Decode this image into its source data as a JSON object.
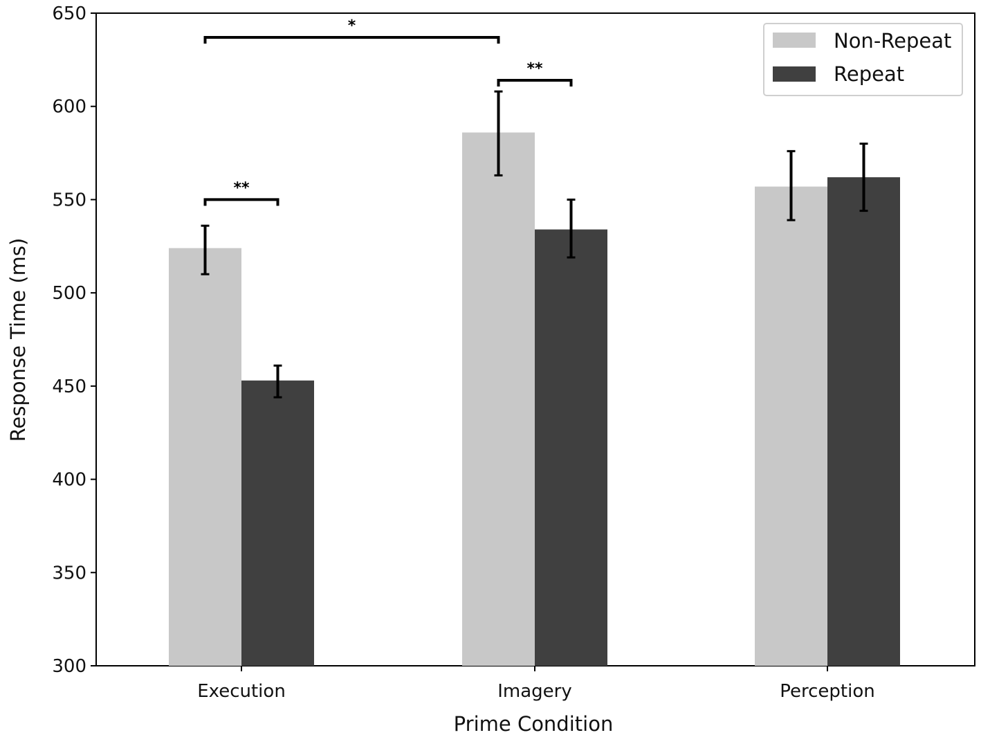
{
  "chart_data": {
    "type": "bar",
    "title": "",
    "xlabel": "Prime Condition",
    "ylabel": "Response Time (ms)",
    "ylim": [
      300,
      650
    ],
    "yticks": [
      300,
      350,
      400,
      450,
      500,
      550,
      600,
      650
    ],
    "categories": [
      "Execution",
      "Imagery",
      "Perception"
    ],
    "series": [
      {
        "name": "Non-Repeat",
        "color": "#c8c8c8",
        "values": [
          524,
          586,
          557
        ],
        "error_low": [
          510,
          563,
          539
        ],
        "error_high": [
          536,
          608,
          576
        ]
      },
      {
        "name": "Repeat",
        "color": "#404040",
        "values": [
          453,
          534,
          562
        ],
        "error_low": [
          444,
          519,
          544
        ],
        "error_high": [
          461,
          550,
          580
        ]
      }
    ],
    "legend": {
      "position": "top-right",
      "entries": [
        "Non-Repeat",
        "Repeat"
      ]
    },
    "significance": [
      {
        "label": "*",
        "from": {
          "category": 0,
          "series": 0
        },
        "to": {
          "category": 1,
          "series": 0
        },
        "level": 637
      },
      {
        "label": "**",
        "from": {
          "category": 0,
          "series": 0
        },
        "to": {
          "category": 0,
          "series": 1
        },
        "level": 550
      },
      {
        "label": "**",
        "from": {
          "category": 1,
          "series": 0
        },
        "to": {
          "category": 1,
          "series": 1
        },
        "level": 614
      }
    ],
    "grid": false
  }
}
